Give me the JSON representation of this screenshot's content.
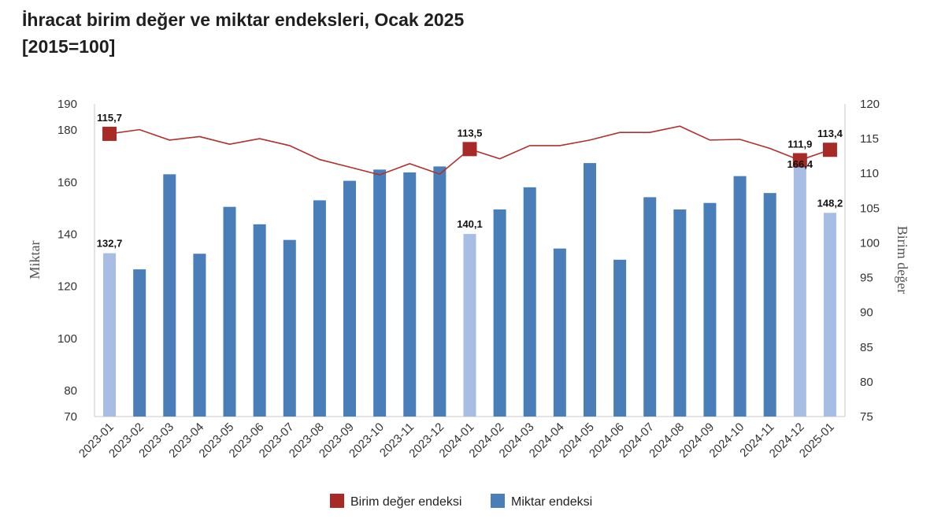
{
  "title": {
    "line1": "İhracat birim değer ve miktar endeksleri, Ocak 2025",
    "line2": "[2015=100]"
  },
  "colors": {
    "bar": "#4a7eb9",
    "bar_highlight": "#a8bde3",
    "line": "#b0302d",
    "marker": "#a72a26",
    "axis": "#c8c8c8"
  },
  "chart_data": {
    "type": "bar+line",
    "categories": [
      "2023-01",
      "2023-02",
      "2023-03",
      "2023-04",
      "2023-05",
      "2023-06",
      "2023-07",
      "2023-08",
      "2023-09",
      "2023-10",
      "2023-11",
      "2023-12",
      "2024-01",
      "2024-02",
      "2024-03",
      "2024-04",
      "2024-05",
      "2024-06",
      "2024-07",
      "2024-08",
      "2024-09",
      "2024-10",
      "2024-11",
      "2024-12",
      "2025-01"
    ],
    "series": [
      {
        "name": "Miktar endeksi",
        "type": "bar",
        "axis": "left",
        "values": [
          132.7,
          126.5,
          163.0,
          132.5,
          150.5,
          143.8,
          137.8,
          153.0,
          160.5,
          164.8,
          163.7,
          166.0,
          140.1,
          149.5,
          158.0,
          134.5,
          167.3,
          130.2,
          154.2,
          149.5,
          152.0,
          162.3,
          155.8,
          166.4,
          148.2
        ],
        "highlighted": [
          "2023-01",
          "2024-01",
          "2024-12",
          "2025-01"
        ]
      },
      {
        "name": "Birim değer endeksi",
        "type": "line",
        "axis": "right",
        "values": [
          115.7,
          116.3,
          114.8,
          115.3,
          114.2,
          115.0,
          114.0,
          112.0,
          110.9,
          109.8,
          111.4,
          109.9,
          113.5,
          112.1,
          114.0,
          114.0,
          114.8,
          115.9,
          115.9,
          116.8,
          114.8,
          114.9,
          113.6,
          111.9,
          113.4
        ],
        "markers": [
          "2023-01",
          "2024-01",
          "2024-12",
          "2025-01"
        ]
      }
    ],
    "data_labels": {
      "bars": [
        {
          "category": "2023-01",
          "text": "132,7"
        },
        {
          "category": "2024-01",
          "text": "140,1"
        },
        {
          "category": "2024-12",
          "text": "166,4"
        },
        {
          "category": "2025-01",
          "text": "148,2"
        }
      ],
      "line": [
        {
          "category": "2023-01",
          "text": "115,7"
        },
        {
          "category": "2024-01",
          "text": "113,5"
        },
        {
          "category": "2024-12",
          "text": "111,9"
        },
        {
          "category": "2025-01",
          "text": "113,4"
        }
      ]
    },
    "y_left": {
      "label": "Miktar",
      "range": [
        70,
        190
      ],
      "ticks": [
        "70",
        "80",
        "100",
        "120",
        "140",
        "160",
        "180",
        "190"
      ]
    },
    "y_right": {
      "label": "Birim değer",
      "range": [
        75,
        120
      ],
      "ticks": [
        "75",
        "80",
        "85",
        "90",
        "95",
        "100",
        "105",
        "110",
        "115",
        "120"
      ]
    },
    "grid": false,
    "legend": {
      "position": "bottom",
      "items": [
        {
          "label": "Birim değer endeksi",
          "color": "#a72a26"
        },
        {
          "label": "Miktar endeksi",
          "color": "#4a7eb9"
        }
      ]
    }
  }
}
